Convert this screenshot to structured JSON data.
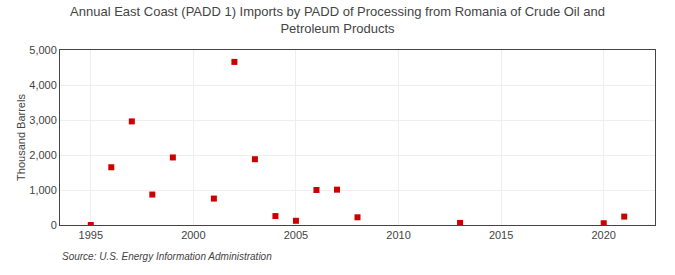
{
  "chart_data": {
    "type": "scatter",
    "title": "Annual East Coast (PADD 1) Imports by PADD of Processing from Romania of Crude Oil and\nPetroleum Products",
    "ylabel": "Thousand Barrels",
    "annotations": [
      "Source: U.S. Energy Information Administration"
    ],
    "x": [
      1995,
      1996,
      1997,
      1998,
      1999,
      2001,
      2002,
      2003,
      2004,
      2005,
      2006,
      2007,
      2008,
      2013,
      2020,
      2021
    ],
    "values": [
      0,
      1650,
      2960,
      870,
      1930,
      755,
      4660,
      1880,
      255,
      120,
      1000,
      1010,
      220,
      60,
      50,
      240
    ],
    "color": "#cc0000",
    "marker": "square",
    "xlim": [
      1993.5,
      2022.5
    ],
    "ylim": [
      0,
      5000
    ],
    "xticks": [
      1995,
      2000,
      2005,
      2010,
      2015,
      2020
    ],
    "yticks": [
      0,
      {
        "value": 1000,
        "label": "1,000"
      },
      {
        "value": 2000,
        "label": "2,000"
      },
      {
        "value": 3000,
        "label": "3,000"
      },
      {
        "value": 4000,
        "label": "4,000"
      },
      {
        "value": 5000,
        "label": "5,000"
      }
    ],
    "grid": true
  }
}
